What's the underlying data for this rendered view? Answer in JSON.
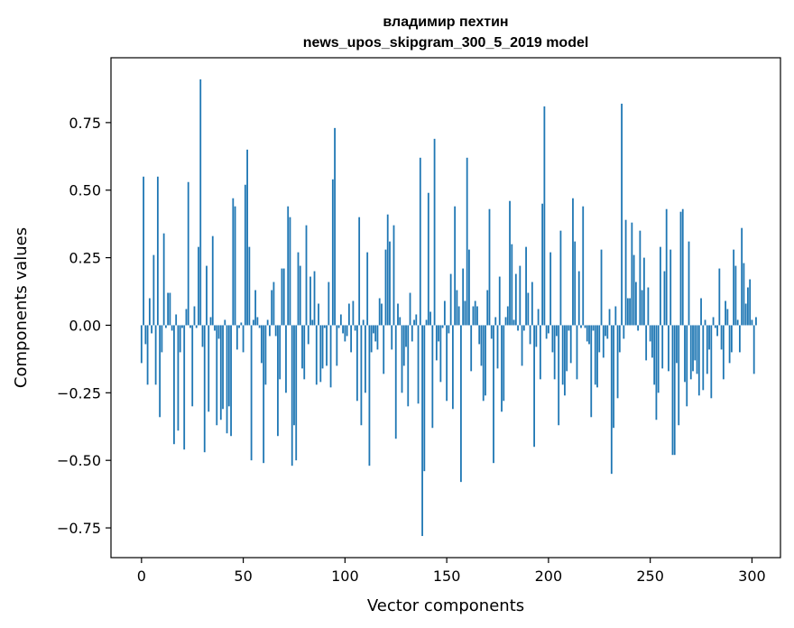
{
  "chart_data": {
    "type": "bar",
    "title": [
      "владимир пехтин",
      "news_upos_skipgram_300_5_2019 model"
    ],
    "xlabel": "Vector components",
    "ylabel": "Components values",
    "xlim": [
      -15,
      314
    ],
    "ylim": [
      -0.86,
      0.99
    ],
    "xticks": [
      0,
      50,
      100,
      150,
      200,
      250,
      300
    ],
    "xtick_labels": [
      "0",
      "50",
      "100",
      "150",
      "200",
      "250",
      "300"
    ],
    "yticks": [
      -0.75,
      -0.5,
      -0.25,
      0.0,
      0.25,
      0.5,
      0.75
    ],
    "ytick_labels": [
      "−0.75",
      "−0.50",
      "−0.25",
      "0.00",
      "0.25",
      "0.50",
      "0.75"
    ],
    "grid": false,
    "bar_color": "#1f77b4",
    "values": [
      -0.14,
      0.55,
      -0.07,
      -0.22,
      0.1,
      -0.03,
      0.26,
      -0.22,
      0.55,
      -0.34,
      -0.1,
      0.34,
      -0.01,
      0.12,
      0.12,
      -0.02,
      -0.44,
      0.04,
      -0.39,
      -0.1,
      -0.01,
      -0.46,
      0.06,
      0.53,
      -0.01,
      -0.3,
      0.07,
      -0.01,
      0.29,
      0.91,
      -0.08,
      -0.47,
      0.22,
      -0.32,
      0.03,
      0.33,
      -0.02,
      -0.37,
      -0.05,
      -0.35,
      -0.31,
      0.02,
      -0.4,
      -0.3,
      -0.41,
      0.47,
      0.44,
      -0.09,
      -0.01,
      0.01,
      -0.1,
      0.52,
      0.65,
      0.29,
      -0.5,
      0.02,
      0.13,
      0.03,
      -0.01,
      -0.14,
      -0.51,
      -0.22,
      0.02,
      -0.04,
      0.13,
      0.16,
      -0.04,
      -0.41,
      -0.2,
      0.21,
      0.21,
      -0.25,
      0.44,
      0.4,
      -0.52,
      -0.37,
      -0.5,
      0.27,
      0.22,
      -0.16,
      -0.2,
      0.37,
      -0.07,
      0.18,
      0.02,
      0.2,
      -0.22,
      0.08,
      -0.21,
      -0.16,
      -0.01,
      -0.15,
      0.16,
      -0.23,
      0.54,
      0.73,
      -0.15,
      -0.01,
      0.04,
      -0.03,
      -0.06,
      -0.04,
      0.08,
      -0.1,
      0.09,
      -0.02,
      -0.28,
      0.4,
      -0.37,
      0.02,
      -0.25,
      0.27,
      -0.52,
      -0.1,
      -0.03,
      -0.06,
      -0.09,
      0.1,
      0.08,
      -0.18,
      0.28,
      0.41,
      0.31,
      -0.09,
      0.37,
      -0.42,
      0.08,
      0.03,
      -0.25,
      -0.15,
      -0.08,
      -0.3,
      0.12,
      -0.06,
      0.02,
      0.04,
      -0.29,
      0.62,
      -0.78,
      -0.54,
      0.02,
      0.49,
      0.05,
      -0.38,
      0.69,
      -0.13,
      -0.06,
      -0.21,
      -0.01,
      0.09,
      -0.28,
      -0.03,
      0.19,
      -0.31,
      0.44,
      0.13,
      0.07,
      -0.58,
      0.21,
      0.09,
      0.62,
      0.28,
      -0.17,
      0.07,
      0.09,
      0.07,
      -0.07,
      -0.15,
      -0.28,
      -0.26,
      0.13,
      0.43,
      -0.05,
      -0.51,
      0.03,
      -0.16,
      0.18,
      -0.32,
      -0.28,
      0.03,
      0.07,
      0.46,
      0.3,
      0.02,
      0.19,
      -0.02,
      0.22,
      -0.15,
      -0.02,
      0.29,
      0.12,
      -0.07,
      0.16,
      -0.45,
      -0.08,
      0.06,
      -0.2,
      0.45,
      0.81,
      -0.05,
      -0.03,
      0.27,
      -0.1,
      -0.2,
      -0.04,
      -0.37,
      0.35,
      -0.22,
      -0.26,
      -0.17,
      -0.02,
      -0.14,
      0.47,
      0.31,
      -0.2,
      0.2,
      -0.01,
      0.44,
      -0.01,
      -0.06,
      -0.07,
      -0.34,
      -0.02,
      -0.22,
      -0.23,
      -0.1,
      0.28,
      -0.12,
      -0.04,
      -0.05,
      0.06,
      -0.55,
      -0.38,
      0.07,
      -0.27,
      -0.1,
      0.82,
      -0.05,
      0.39,
      0.1,
      0.1,
      0.38,
      0.26,
      0.16,
      -0.02,
      0.35,
      0.13,
      0.25,
      -0.13,
      0.14,
      -0.06,
      -0.12,
      -0.22,
      -0.35,
      -0.25,
      0.29,
      -0.16,
      0.2,
      0.43,
      -0.17,
      0.28,
      -0.48,
      -0.48,
      -0.14,
      -0.37,
      0.42,
      0.43,
      -0.21,
      -0.3,
      0.31,
      -0.2,
      -0.17,
      -0.13,
      -0.18,
      -0.26,
      0.1,
      -0.24,
      0.02,
      -0.18,
      -0.09,
      -0.27,
      0.03,
      -0.01,
      -0.04,
      0.21,
      -0.09,
      -0.2,
      0.09,
      0.06,
      -0.14,
      -0.1,
      0.28,
      0.22,
      0.02,
      -0.1,
      0.36,
      0.23,
      0.08,
      0.14,
      0.17,
      0.02,
      -0.18,
      0.03
    ]
  }
}
